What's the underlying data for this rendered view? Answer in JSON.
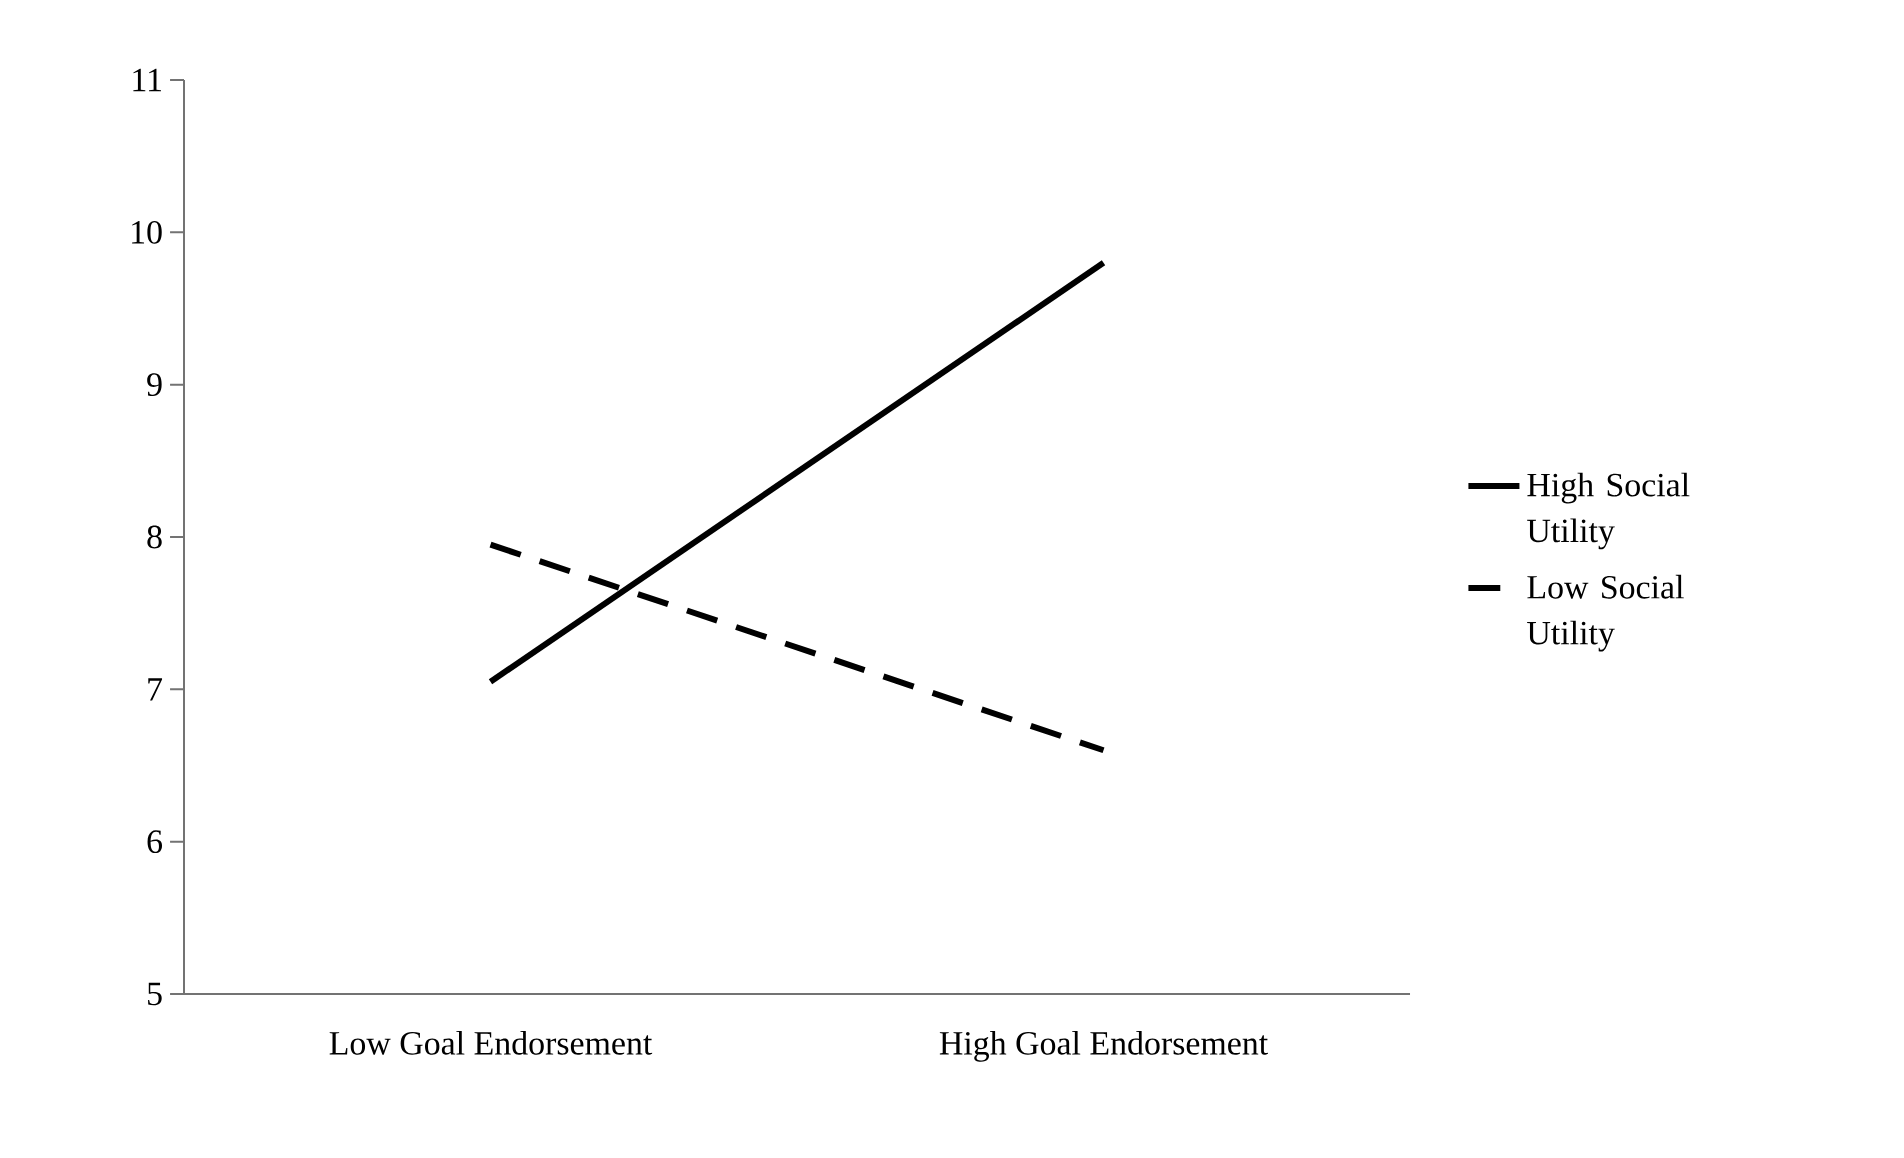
{
  "chart_data": {
    "type": "line",
    "categories": [
      "Low Goal Endorsement",
      "High Goal Endorsement"
    ],
    "series": [
      {
        "name": "High Social Utility",
        "color": "#000000",
        "line_style": "solid",
        "values": [
          7.05,
          9.8
        ]
      },
      {
        "name": "Low Social Utility",
        "color": "#000000",
        "line_style": "dashed",
        "values": [
          7.95,
          6.6
        ]
      }
    ],
    "ylim": [
      5,
      11
    ],
    "yticks": [
      5,
      6,
      7,
      8,
      9,
      10,
      11
    ],
    "grid": false,
    "legend": "right"
  }
}
